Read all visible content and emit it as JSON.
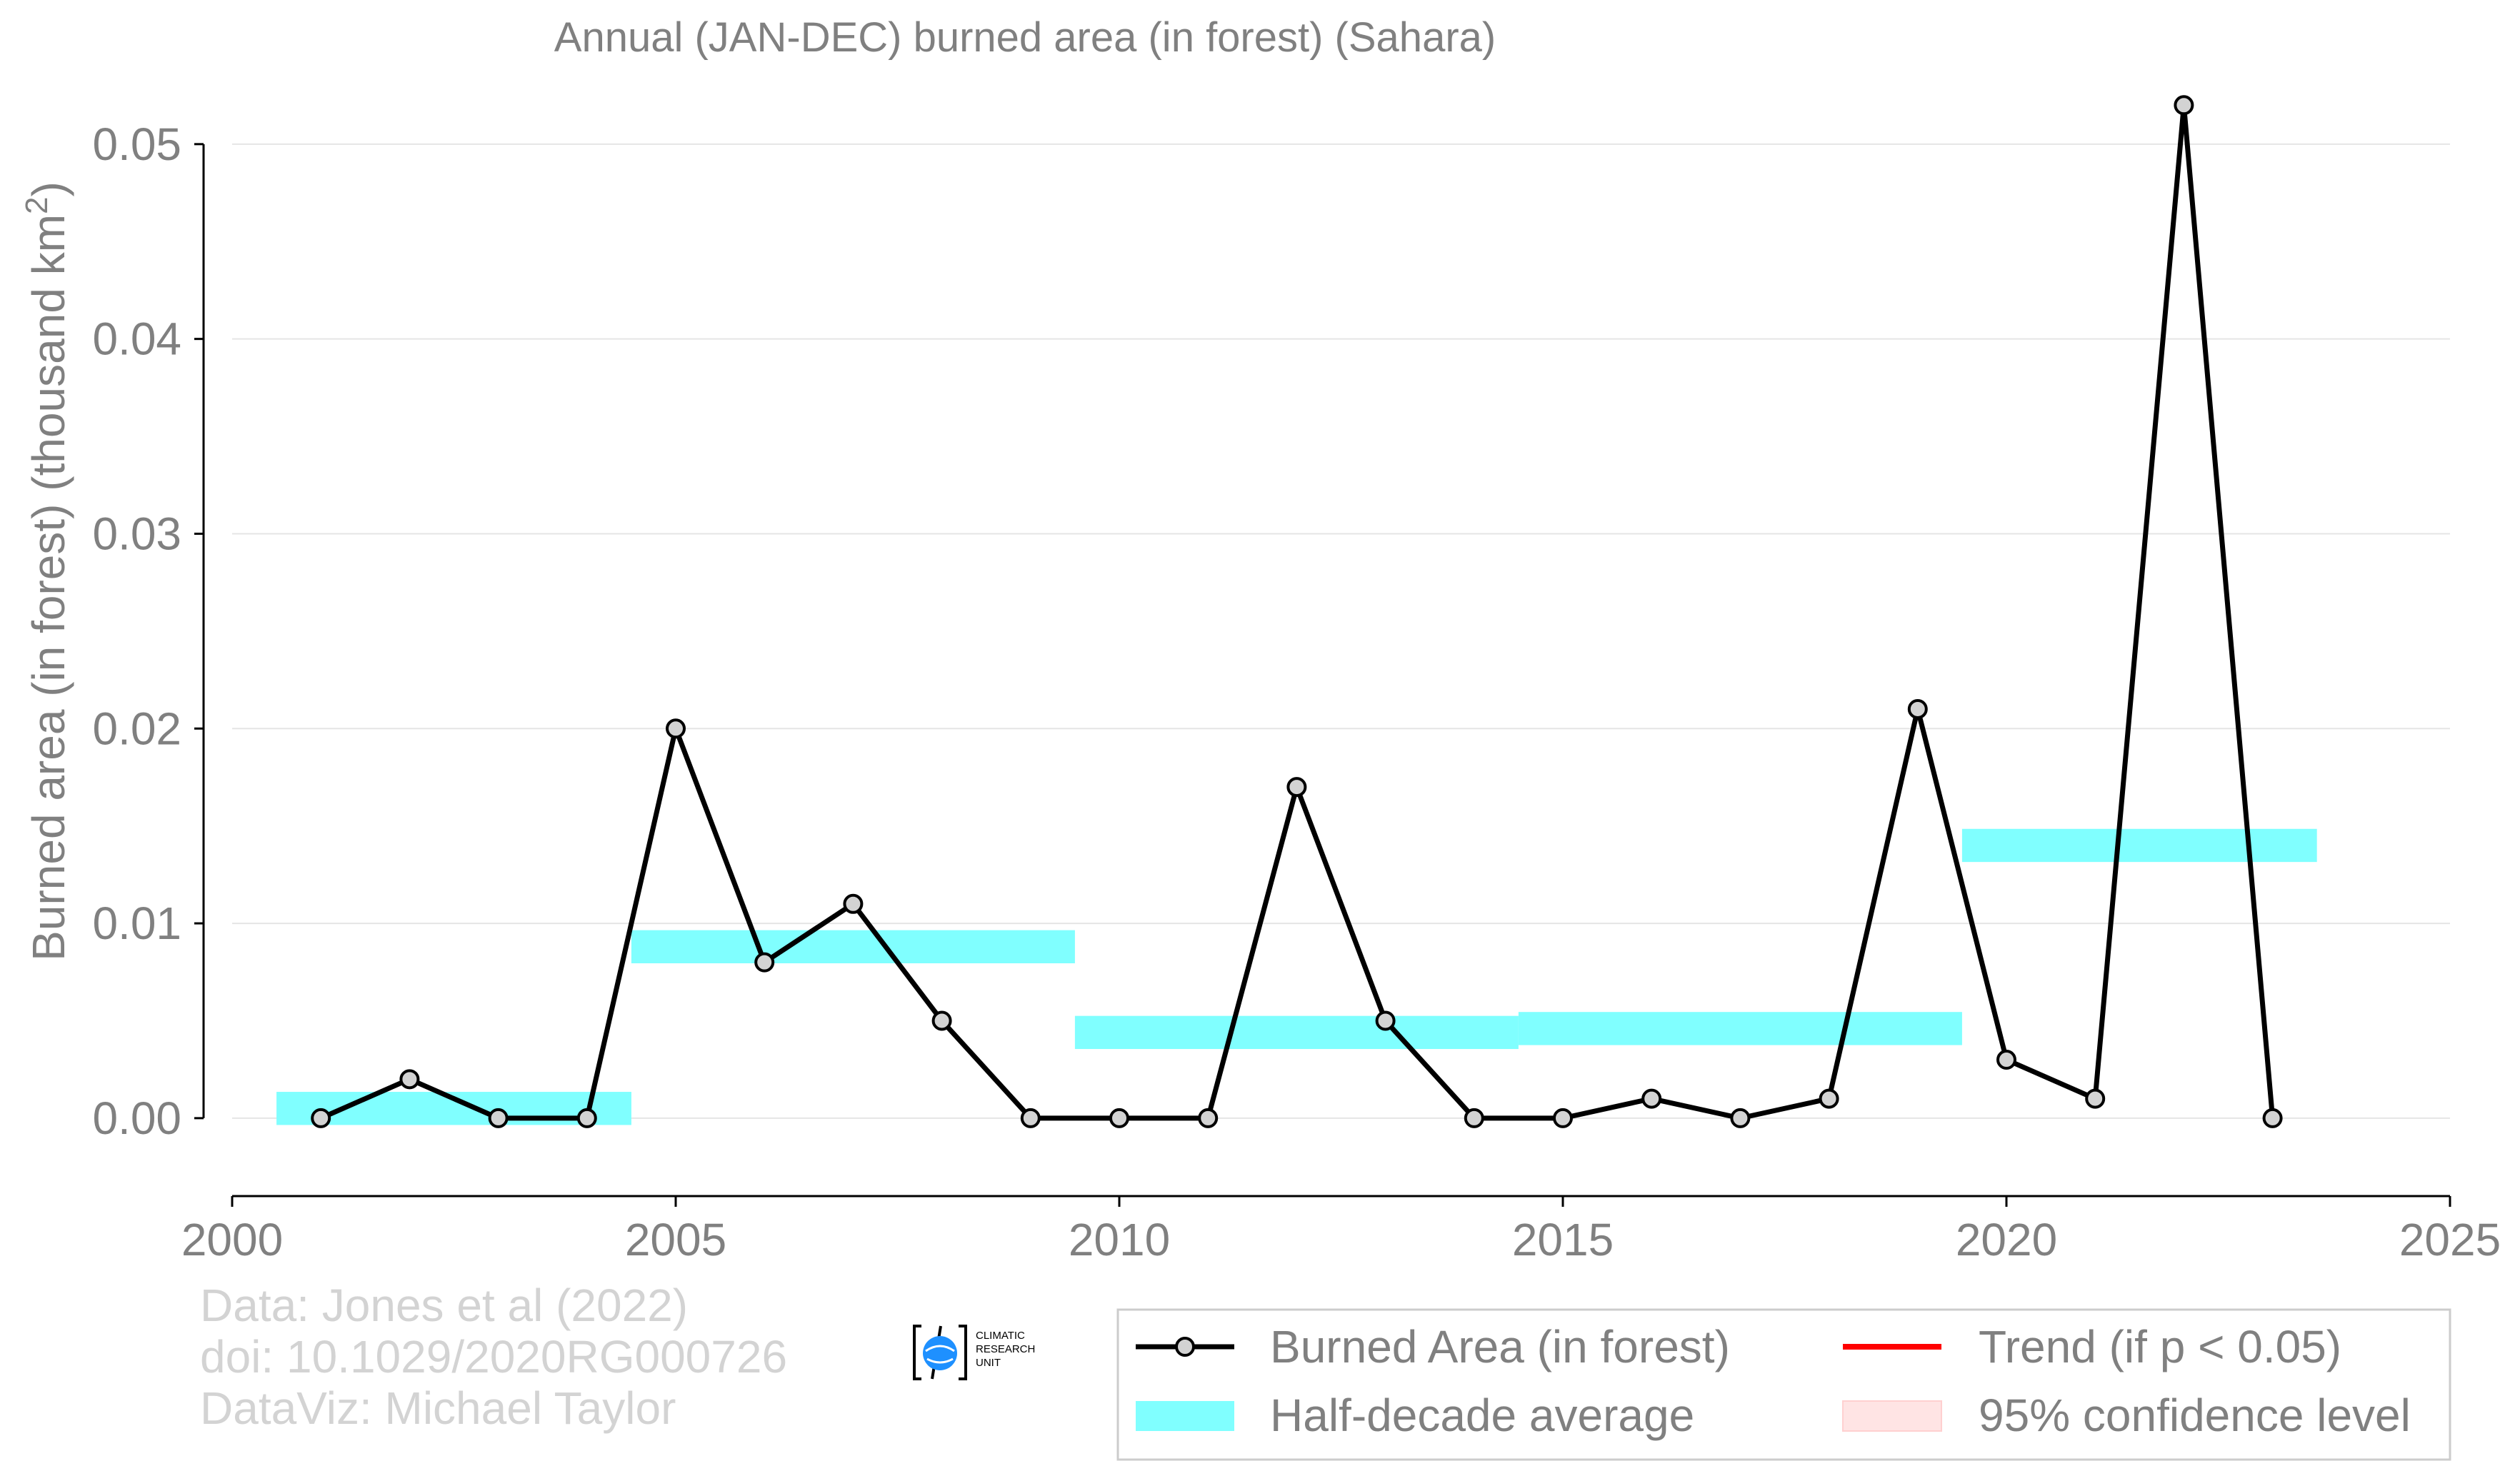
{
  "chart_data": {
    "type": "line",
    "title": "Annual (JAN-DEC) burned area (in forest) (Sahara)",
    "xlabel": "",
    "ylabel": "Burned area (in forest) (thousand km",
    "ylabel_sup": "2",
    "ylabel_tail": ")",
    "xlim": [
      2000,
      2025
    ],
    "ylim": [
      -0.004,
      0.053
    ],
    "grid": "horizontal",
    "x_ticks": [
      2000,
      2005,
      2010,
      2015,
      2020,
      2025
    ],
    "x_tick_labels": [
      "2000",
      "2005",
      "2010",
      "2015",
      "2020",
      "2025"
    ],
    "y_ticks": [
      0.0,
      0.01,
      0.02,
      0.03,
      0.04,
      0.05
    ],
    "y_tick_labels": [
      "0.00",
      "0.01",
      "0.02",
      "0.03",
      "0.04",
      "0.05"
    ],
    "series": [
      {
        "name": "Burned Area (in forest)",
        "color": "#000000",
        "marker_fill": "#d3d3d3",
        "x": [
          2001,
          2002,
          2003,
          2004,
          2005,
          2006,
          2007,
          2008,
          2009,
          2010,
          2011,
          2012,
          2013,
          2014,
          2015,
          2016,
          2017,
          2018,
          2019,
          2020,
          2021,
          2022,
          2023
        ],
        "y": [
          0.0,
          0.002,
          0.0,
          0.0,
          0.02,
          0.008,
          0.011,
          0.005,
          0.0,
          0.0,
          0.0,
          0.017,
          0.005,
          0.0,
          0.0,
          0.001,
          0.0,
          0.001,
          0.021,
          0.003,
          0.001,
          0.052,
          0.0
        ]
      }
    ],
    "half_decade_average": {
      "name": "Half-decade average",
      "color": "#80ffff",
      "segments": [
        {
          "x_start": 2000.5,
          "x_end": 2004.5,
          "value": 0.0005
        },
        {
          "x_start": 2004.5,
          "x_end": 2009.5,
          "value": 0.0088
        },
        {
          "x_start": 2009.5,
          "x_end": 2014.5,
          "value": 0.0044
        },
        {
          "x_start": 2014.5,
          "x_end": 2019.5,
          "value": 0.0046
        },
        {
          "x_start": 2019.5,
          "x_end": 2023.5,
          "value": 0.014
        }
      ]
    },
    "legend": {
      "position": "bottom-right",
      "items": [
        {
          "label": "Burned Area (in forest)",
          "kind": "line-marker",
          "color": "#000000"
        },
        {
          "label": "Trend (if p < 0.05)",
          "kind": "line",
          "color": "#ff0000"
        },
        {
          "label": "Half-decade average",
          "kind": "band",
          "color": "#80ffff"
        },
        {
          "label": "95% confidence level",
          "kind": "band",
          "color": "#ffe4e4"
        }
      ]
    },
    "credits": [
      "Data: Jones et al (2022)",
      "doi: 10.1029/2020RG000726",
      "DataViz: Michael Taylor"
    ],
    "logo_text": [
      "CLIMATIC",
      "RESEARCH",
      "UNIT"
    ]
  },
  "colors": {
    "text": "#808080",
    "grid": "#e5e5e5",
    "axis": "#000000",
    "credit": "#d3d3d3",
    "legend_border": "#cccccc",
    "logo_globe": "#1e90ff"
  }
}
